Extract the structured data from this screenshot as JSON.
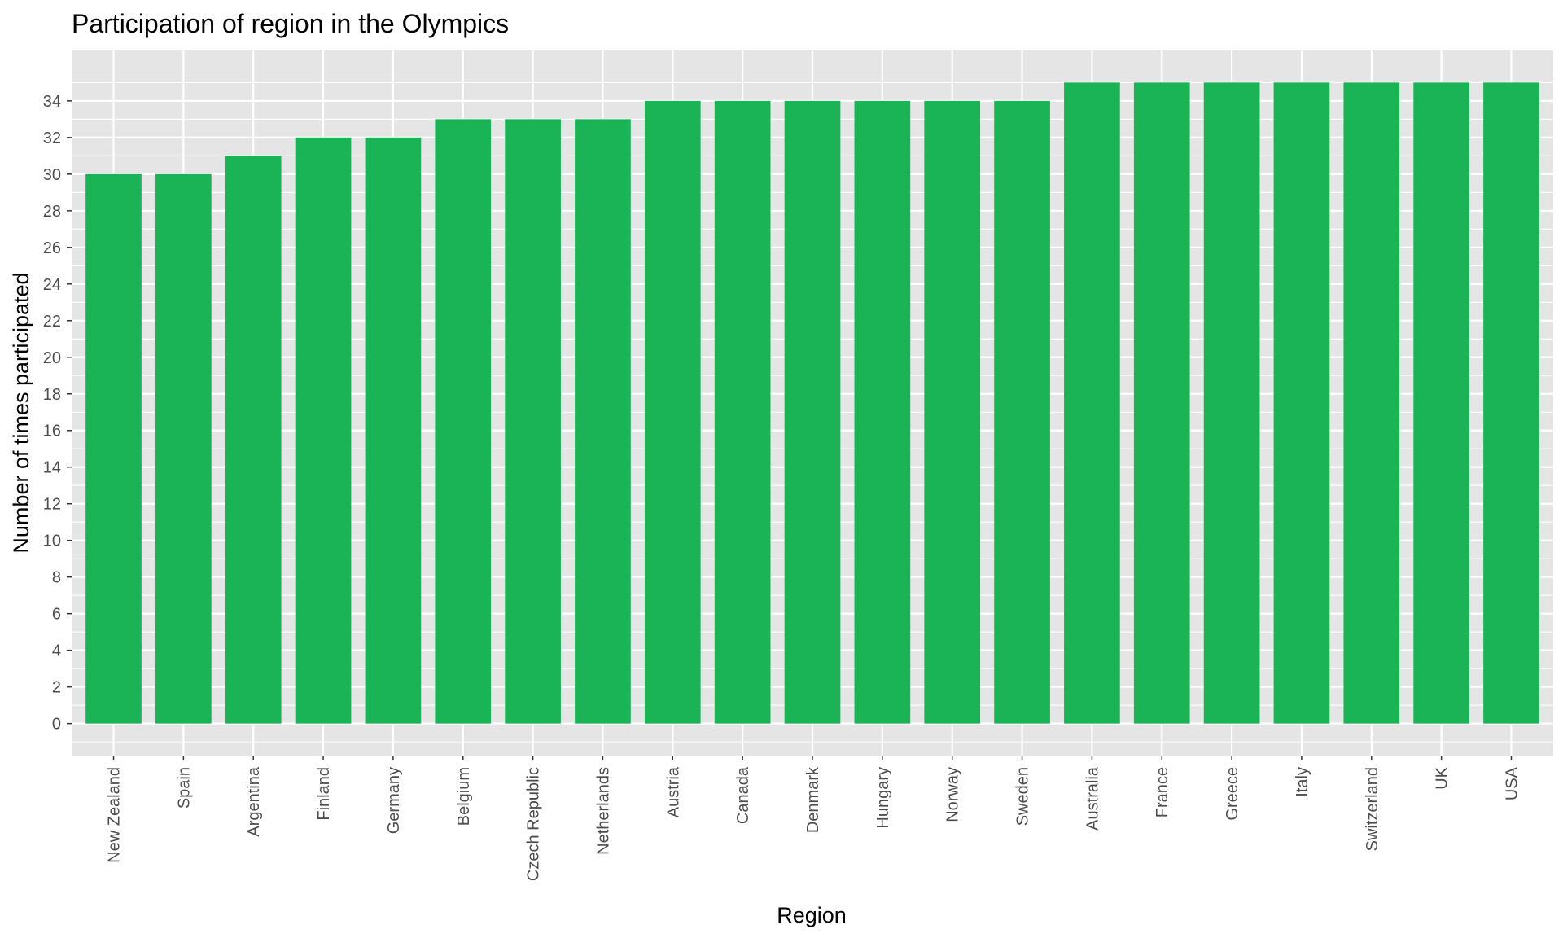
{
  "chart_data": {
    "type": "bar",
    "title": "Participation of region in the Olympics",
    "xlabel": "Region",
    "ylabel": "Number of times participated",
    "categories": [
      "New Zealand",
      "Spain",
      "Argentina",
      "Finland",
      "Germany",
      "Belgium",
      "Czech Republic",
      "Netherlands",
      "Austria",
      "Canada",
      "Denmark",
      "Hungary",
      "Norway",
      "Sweden",
      "Australia",
      "France",
      "Greece",
      "Italy",
      "Switzerland",
      "UK",
      "USA"
    ],
    "values": [
      30,
      30,
      31,
      32,
      32,
      33,
      33,
      33,
      34,
      34,
      34,
      34,
      34,
      34,
      35,
      35,
      35,
      35,
      35,
      35,
      35
    ],
    "yticks": [
      "0",
      "2",
      "4",
      "6",
      "8",
      "10",
      "12",
      "14",
      "16",
      "18",
      "20",
      "22",
      "24",
      "26",
      "28",
      "30",
      "32",
      "34"
    ],
    "ylim": [
      -1.75,
      36.75
    ],
    "grid": true,
    "bar_color": "#1AB457",
    "panel_color": "#E5E5E5",
    "legend": "none"
  }
}
